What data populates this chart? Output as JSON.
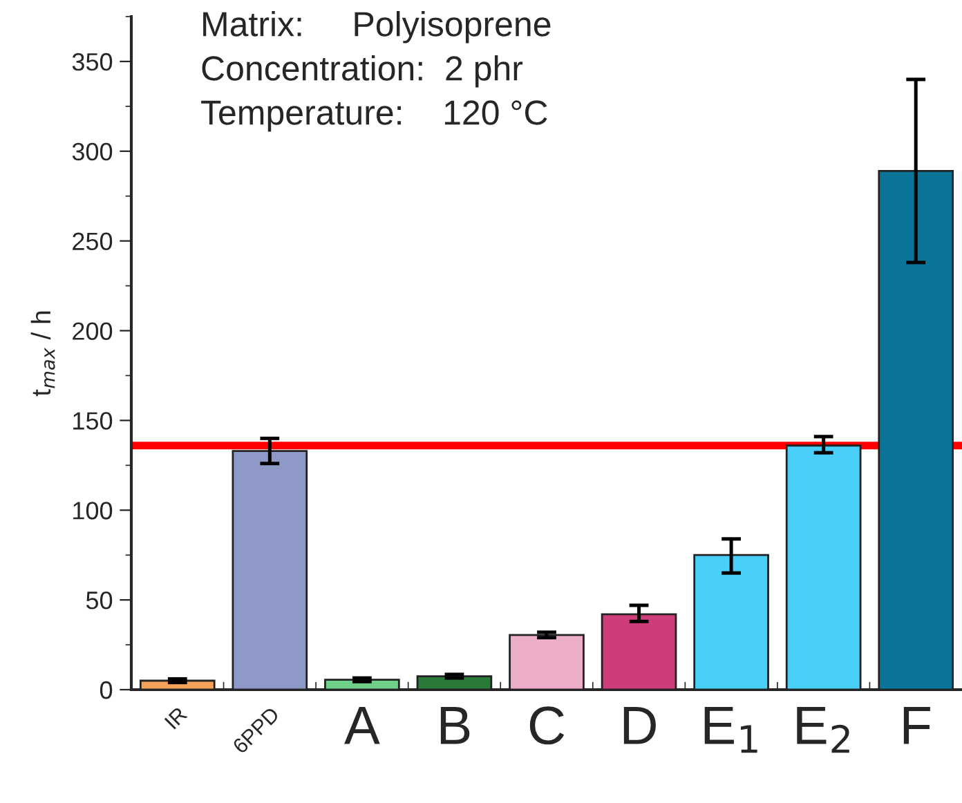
{
  "chart_data": {
    "type": "bar",
    "ylabel": "t$_{max}$ / h",
    "categories": [
      "IR",
      "6PPD",
      "A",
      "B",
      "C",
      "D",
      "E$_{1}$",
      "E$_{2}$",
      "F"
    ],
    "values": [
      5,
      133,
      5.5,
      7.5,
      30.5,
      42,
      75,
      136,
      289
    ],
    "errors": [
      1,
      [
        126,
        140
      ],
      1,
      1,
      1.5,
      [
        38,
        47
      ],
      [
        65,
        84
      ],
      [
        132,
        141
      ],
      [
        238,
        340
      ]
    ],
    "colors": [
      "#f4a15a",
      "#8f99c8",
      "#6fd08a",
      "#2a7a3a",
      "#ecaec8",
      "#cf3c7a",
      "#4acff8",
      "#4acff8",
      "#0a7599"
    ],
    "ylim": [
      0,
      375
    ],
    "yticks": [
      0,
      50,
      100,
      150,
      200,
      250,
      300,
      350
    ],
    "ref_lines": [
      {
        "axis": "y",
        "value": 136,
        "color": "#ff0000"
      }
    ],
    "annotations": [
      "Matrix:     Polyisoprene",
      "Concentration:  2 phr",
      "Temperature:    120 °C"
    ],
    "grid": false,
    "legend": false
  }
}
